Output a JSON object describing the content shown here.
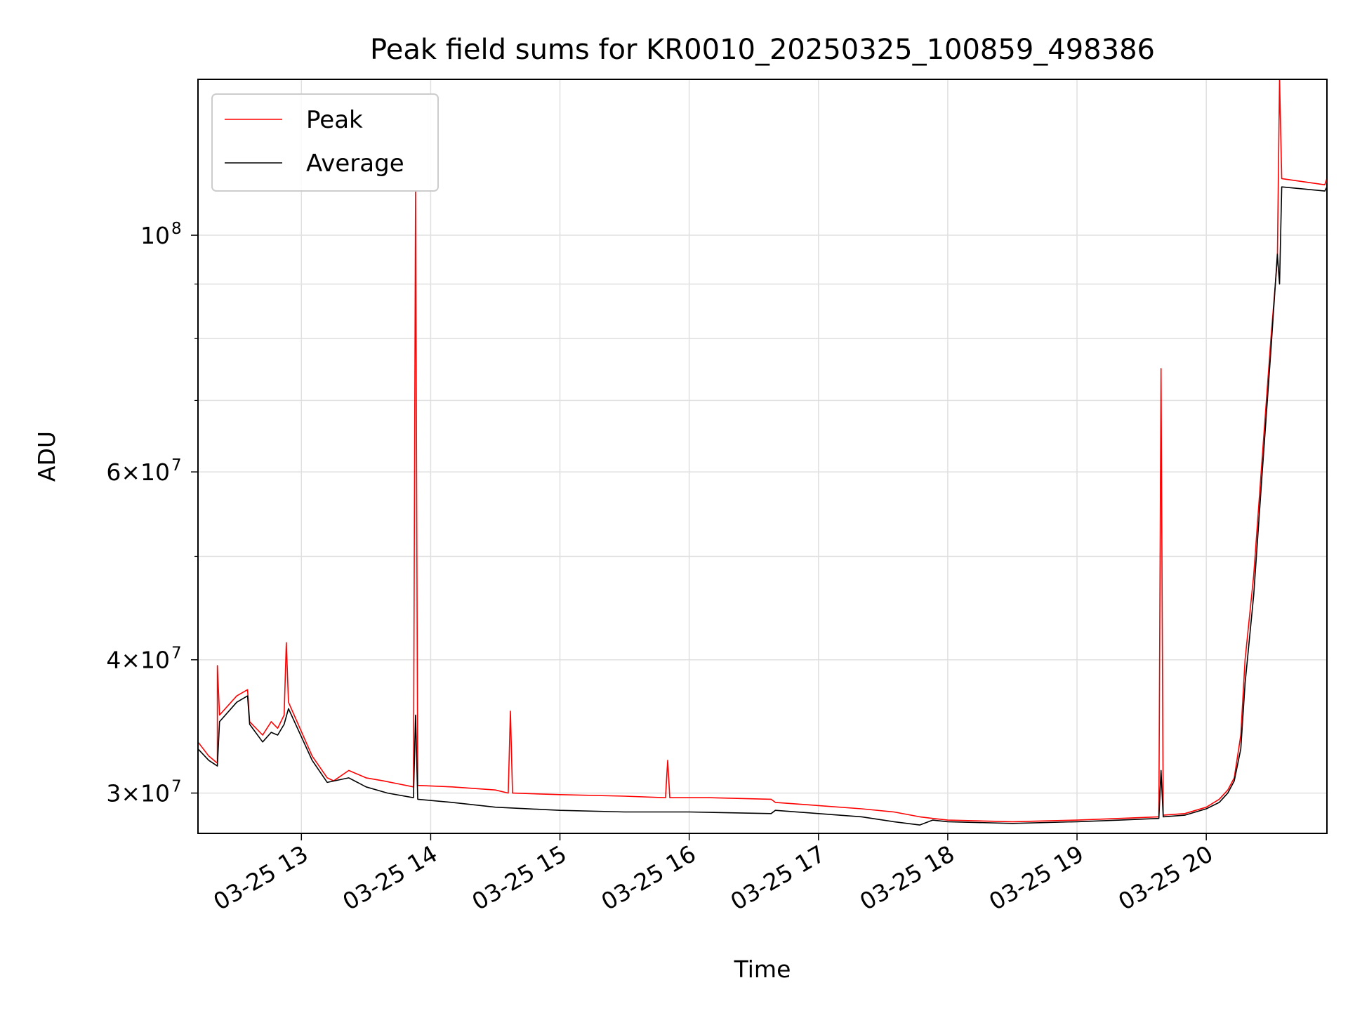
{
  "chart_data": {
    "type": "line",
    "title": "Peak field sums for KR0010_20250325_100859_498386",
    "xlabel": "Time",
    "ylabel": "ADU",
    "y_scale": "log",
    "grid": true,
    "legend_position": "top-left",
    "xlim": [
      "03-25 12:12",
      "03-25 20:56"
    ],
    "ylim": [
      27500000,
      140000000
    ],
    "x_ticks": [
      {
        "t": "03-25 13:00",
        "label": "03-25 13"
      },
      {
        "t": "03-25 14:00",
        "label": "03-25 14"
      },
      {
        "t": "03-25 15:00",
        "label": "03-25 15"
      },
      {
        "t": "03-25 16:00",
        "label": "03-25 16"
      },
      {
        "t": "03-25 17:00",
        "label": "03-25 17"
      },
      {
        "t": "03-25 18:00",
        "label": "03-25 18"
      },
      {
        "t": "03-25 19:00",
        "label": "03-25 19"
      },
      {
        "t": "03-25 20:00",
        "label": "03-25 20"
      }
    ],
    "y_ticks": [
      {
        "value": 30000000,
        "label_base": "3×10",
        "label_exp": "7"
      },
      {
        "value": 40000000,
        "label_base": "4×10",
        "label_exp": "7"
      },
      {
        "value": 60000000,
        "label_base": "6×10",
        "label_exp": "7"
      },
      {
        "value": 100000000,
        "label_base": "10",
        "label_exp": "8"
      }
    ],
    "y_minor_ticks": [
      50000000,
      70000000,
      80000000,
      90000000
    ],
    "series": [
      {
        "name": "Peak",
        "color": "#ff0000",
        "points": [
          [
            "03-25 12:12",
            33500000
          ],
          [
            "03-25 12:17",
            32500000
          ],
          [
            "03-25 12:21",
            32000000
          ],
          [
            "03-25 12:21",
            39500000
          ],
          [
            "03-25 12:22",
            35500000
          ],
          [
            "03-25 12:30",
            37000000
          ],
          [
            "03-25 12:35",
            37500000
          ],
          [
            "03-25 12:36",
            35000000
          ],
          [
            "03-25 12:42",
            34000000
          ],
          [
            "03-25 12:46",
            35000000
          ],
          [
            "03-25 12:49",
            34500000
          ],
          [
            "03-25 12:52",
            35500000
          ],
          [
            "03-25 12:53",
            41500000
          ],
          [
            "03-25 12:54",
            36500000
          ],
          [
            "03-25 13:05",
            32500000
          ],
          [
            "03-25 13:12",
            31000000
          ],
          [
            "03-25 13:15",
            30800000
          ],
          [
            "03-25 13:22",
            31500000
          ],
          [
            "03-25 13:30",
            31000000
          ],
          [
            "03-25 13:38",
            30800000
          ],
          [
            "03-25 13:45",
            30600000
          ],
          [
            "03-25 13:52",
            30400000
          ],
          [
            "03-25 13:53",
            110000000
          ],
          [
            "03-25 13:54",
            30500000
          ],
          [
            "03-25 14:10",
            30400000
          ],
          [
            "03-25 14:30",
            30200000
          ],
          [
            "03-25 14:36",
            30000000
          ],
          [
            "03-25 14:37",
            35800000
          ],
          [
            "03-25 14:38",
            30000000
          ],
          [
            "03-25 15:00",
            29900000
          ],
          [
            "03-25 15:30",
            29800000
          ],
          [
            "03-25 15:49",
            29700000
          ],
          [
            "03-25 15:50",
            32200000
          ],
          [
            "03-25 15:51",
            29700000
          ],
          [
            "03-25 16:10",
            29700000
          ],
          [
            "03-25 16:38",
            29600000
          ],
          [
            "03-25 16:40",
            29400000
          ],
          [
            "03-25 17:00",
            29200000
          ],
          [
            "03-25 17:20",
            29000000
          ],
          [
            "03-25 17:35",
            28800000
          ],
          [
            "03-25 17:47",
            28500000
          ],
          [
            "03-25 17:53",
            28400000
          ],
          [
            "03-25 18:00",
            28300000
          ],
          [
            "03-25 18:30",
            28200000
          ],
          [
            "03-25 19:00",
            28300000
          ],
          [
            "03-25 19:20",
            28400000
          ],
          [
            "03-25 19:38",
            28500000
          ],
          [
            "03-25 19:39",
            75000000
          ],
          [
            "03-25 19:40",
            28600000
          ],
          [
            "03-25 19:50",
            28700000
          ],
          [
            "03-25 20:00",
            29100000
          ],
          [
            "03-25 20:06",
            29600000
          ],
          [
            "03-25 20:10",
            30200000
          ],
          [
            "03-25 20:13",
            31000000
          ],
          [
            "03-25 20:16",
            34000000
          ],
          [
            "03-25 20:18",
            40000000
          ],
          [
            "03-25 20:22",
            48000000
          ],
          [
            "03-25 20:26",
            62000000
          ],
          [
            "03-25 20:30",
            80000000
          ],
          [
            "03-25 20:33",
            95000000
          ],
          [
            "03-25 20:34",
            140000000
          ],
          [
            "03-25 20:35",
            113000000
          ],
          [
            "03-25 20:55",
            111500000
          ],
          [
            "03-25 20:56",
            113000000
          ]
        ]
      },
      {
        "name": "Average",
        "color": "#000000",
        "points": [
          [
            "03-25 12:12",
            33000000
          ],
          [
            "03-25 12:17",
            32200000
          ],
          [
            "03-25 12:21",
            31800000
          ],
          [
            "03-25 12:22",
            35000000
          ],
          [
            "03-25 12:30",
            36500000
          ],
          [
            "03-25 12:35",
            37000000
          ],
          [
            "03-25 12:36",
            34800000
          ],
          [
            "03-25 12:42",
            33500000
          ],
          [
            "03-25 12:46",
            34200000
          ],
          [
            "03-25 12:49",
            34000000
          ],
          [
            "03-25 12:52",
            34800000
          ],
          [
            "03-25 12:54",
            36000000
          ],
          [
            "03-25 13:05",
            32200000
          ],
          [
            "03-25 13:12",
            30700000
          ],
          [
            "03-25 13:22",
            31000000
          ],
          [
            "03-25 13:30",
            30400000
          ],
          [
            "03-25 13:40",
            30000000
          ],
          [
            "03-25 13:52",
            29700000
          ],
          [
            "03-25 13:53",
            35500000
          ],
          [
            "03-25 13:54",
            29600000
          ],
          [
            "03-25 14:10",
            29400000
          ],
          [
            "03-25 14:30",
            29100000
          ],
          [
            "03-25 15:00",
            28900000
          ],
          [
            "03-25 15:30",
            28800000
          ],
          [
            "03-25 16:00",
            28800000
          ],
          [
            "03-25 16:38",
            28700000
          ],
          [
            "03-25 16:40",
            28900000
          ],
          [
            "03-25 17:00",
            28700000
          ],
          [
            "03-25 17:20",
            28500000
          ],
          [
            "03-25 17:35",
            28200000
          ],
          [
            "03-25 17:47",
            28000000
          ],
          [
            "03-25 17:53",
            28300000
          ],
          [
            "03-25 18:00",
            28200000
          ],
          [
            "03-25 18:30",
            28100000
          ],
          [
            "03-25 19:00",
            28200000
          ],
          [
            "03-25 19:20",
            28300000
          ],
          [
            "03-25 19:38",
            28400000
          ],
          [
            "03-25 19:39",
            31500000
          ],
          [
            "03-25 19:40",
            28500000
          ],
          [
            "03-25 19:50",
            28600000
          ],
          [
            "03-25 20:00",
            29000000
          ],
          [
            "03-25 20:06",
            29400000
          ],
          [
            "03-25 20:10",
            30000000
          ],
          [
            "03-25 20:13",
            30800000
          ],
          [
            "03-25 20:16",
            33000000
          ],
          [
            "03-25 20:18",
            38000000
          ],
          [
            "03-25 20:22",
            46000000
          ],
          [
            "03-25 20:26",
            60000000
          ],
          [
            "03-25 20:30",
            78000000
          ],
          [
            "03-25 20:33",
            96000000
          ],
          [
            "03-25 20:34",
            90000000
          ],
          [
            "03-25 20:35",
            111000000
          ],
          [
            "03-25 20:55",
            110000000
          ],
          [
            "03-25 20:56",
            111000000
          ]
        ]
      }
    ]
  }
}
